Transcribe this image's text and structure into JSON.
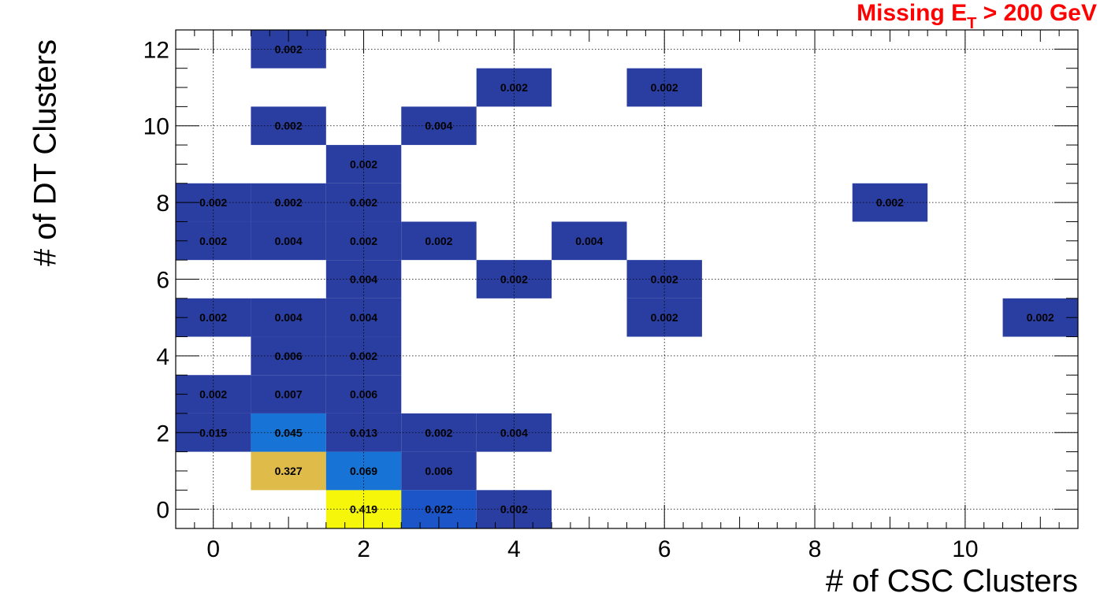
{
  "chart_data": {
    "type": "heatmap",
    "title": "Missing E_T > 200 GeV",
    "title_parts": {
      "main": "Missing E",
      "subscript": "T",
      "rest": " > 200 GeV"
    },
    "title_color": "#ff0000",
    "xlabel": "# of CSC Clusters",
    "ylabel": "# of DT Clusters",
    "xlim": [
      -0.5,
      11.5
    ],
    "ylim": [
      -0.5,
      12.5
    ],
    "x_ticks": [
      "0",
      "2",
      "4",
      "6",
      "8",
      "10"
    ],
    "y_ticks": [
      "0",
      "2",
      "4",
      "6",
      "8",
      "10",
      "12"
    ],
    "grid": true,
    "colors": {
      "dark_blue": "#2a3ea1",
      "mid_blue": "#1c55c8",
      "light_blue": "#1774d6",
      "gold": "#dfbb4a",
      "yellow": "#f6f60b"
    },
    "cells": [
      {
        "x": 2,
        "y": 0,
        "value": 0.419,
        "label": "0.419",
        "color": "#f6f60b"
      },
      {
        "x": 3,
        "y": 0,
        "value": 0.022,
        "label": "0.022",
        "color": "#1c55c8"
      },
      {
        "x": 4,
        "y": 0,
        "value": 0.002,
        "label": "0.002",
        "color": "#2a3ea1"
      },
      {
        "x": 1,
        "y": 1,
        "value": 0.327,
        "label": "0.327",
        "color": "#dfbb4a"
      },
      {
        "x": 2,
        "y": 1,
        "value": 0.069,
        "label": "0.069",
        "color": "#1774d6"
      },
      {
        "x": 3,
        "y": 1,
        "value": 0.006,
        "label": "0.006",
        "color": "#2a3ea1"
      },
      {
        "x": 0,
        "y": 2,
        "value": 0.015,
        "label": "0.015",
        "color": "#2a3ea1"
      },
      {
        "x": 1,
        "y": 2,
        "value": 0.045,
        "label": "0.045",
        "color": "#1774d6"
      },
      {
        "x": 2,
        "y": 2,
        "value": 0.013,
        "label": "0.013",
        "color": "#2a3ea1"
      },
      {
        "x": 3,
        "y": 2,
        "value": 0.002,
        "label": "0.002",
        "color": "#2a3ea1"
      },
      {
        "x": 4,
        "y": 2,
        "value": 0.004,
        "label": "0.004",
        "color": "#2a3ea1"
      },
      {
        "x": 0,
        "y": 3,
        "value": 0.002,
        "label": "0.002",
        "color": "#2a3ea1"
      },
      {
        "x": 1,
        "y": 3,
        "value": 0.007,
        "label": "0.007",
        "color": "#2a3ea1"
      },
      {
        "x": 2,
        "y": 3,
        "value": 0.006,
        "label": "0.006",
        "color": "#2a3ea1"
      },
      {
        "x": 1,
        "y": 4,
        "value": 0.006,
        "label": "0.006",
        "color": "#2a3ea1"
      },
      {
        "x": 2,
        "y": 4,
        "value": 0.002,
        "label": "0.002",
        "color": "#2a3ea1"
      },
      {
        "x": 0,
        "y": 5,
        "value": 0.002,
        "label": "0.002",
        "color": "#2a3ea1"
      },
      {
        "x": 1,
        "y": 5,
        "value": 0.004,
        "label": "0.004",
        "color": "#2a3ea1"
      },
      {
        "x": 2,
        "y": 5,
        "value": 0.004,
        "label": "0.004",
        "color": "#2a3ea1"
      },
      {
        "x": 6,
        "y": 5,
        "value": 0.002,
        "label": "0.002",
        "color": "#2a3ea1"
      },
      {
        "x": 11,
        "y": 5,
        "value": 0.002,
        "label": "0.002",
        "color": "#2a3ea1"
      },
      {
        "x": 2,
        "y": 6,
        "value": 0.004,
        "label": "0.004",
        "color": "#2a3ea1"
      },
      {
        "x": 4,
        "y": 6,
        "value": 0.002,
        "label": "0.002",
        "color": "#2a3ea1"
      },
      {
        "x": 6,
        "y": 6,
        "value": 0.002,
        "label": "0.002",
        "color": "#2a3ea1"
      },
      {
        "x": 0,
        "y": 7,
        "value": 0.002,
        "label": "0.002",
        "color": "#2a3ea1"
      },
      {
        "x": 1,
        "y": 7,
        "value": 0.004,
        "label": "0.004",
        "color": "#2a3ea1"
      },
      {
        "x": 2,
        "y": 7,
        "value": 0.002,
        "label": "0.002",
        "color": "#2a3ea1"
      },
      {
        "x": 3,
        "y": 7,
        "value": 0.002,
        "label": "0.002",
        "color": "#2a3ea1"
      },
      {
        "x": 5,
        "y": 7,
        "value": 0.004,
        "label": "0.004",
        "color": "#2a3ea1"
      },
      {
        "x": 0,
        "y": 8,
        "value": 0.002,
        "label": "0.002",
        "color": "#2a3ea1"
      },
      {
        "x": 1,
        "y": 8,
        "value": 0.002,
        "label": "0.002",
        "color": "#2a3ea1"
      },
      {
        "x": 2,
        "y": 8,
        "value": 0.002,
        "label": "0.002",
        "color": "#2a3ea1"
      },
      {
        "x": 9,
        "y": 8,
        "value": 0.002,
        "label": "0.002",
        "color": "#2a3ea1"
      },
      {
        "x": 2,
        "y": 9,
        "value": 0.002,
        "label": "0.002",
        "color": "#2a3ea1"
      },
      {
        "x": 1,
        "y": 10,
        "value": 0.002,
        "label": "0.002",
        "color": "#2a3ea1"
      },
      {
        "x": 3,
        "y": 10,
        "value": 0.004,
        "label": "0.004",
        "color": "#2a3ea1"
      },
      {
        "x": 4,
        "y": 11,
        "value": 0.002,
        "label": "0.002",
        "color": "#2a3ea1"
      },
      {
        "x": 6,
        "y": 11,
        "value": 0.002,
        "label": "0.002",
        "color": "#2a3ea1"
      },
      {
        "x": 1,
        "y": 12,
        "value": 0.002,
        "label": "0.002",
        "color": "#2a3ea1"
      }
    ]
  }
}
